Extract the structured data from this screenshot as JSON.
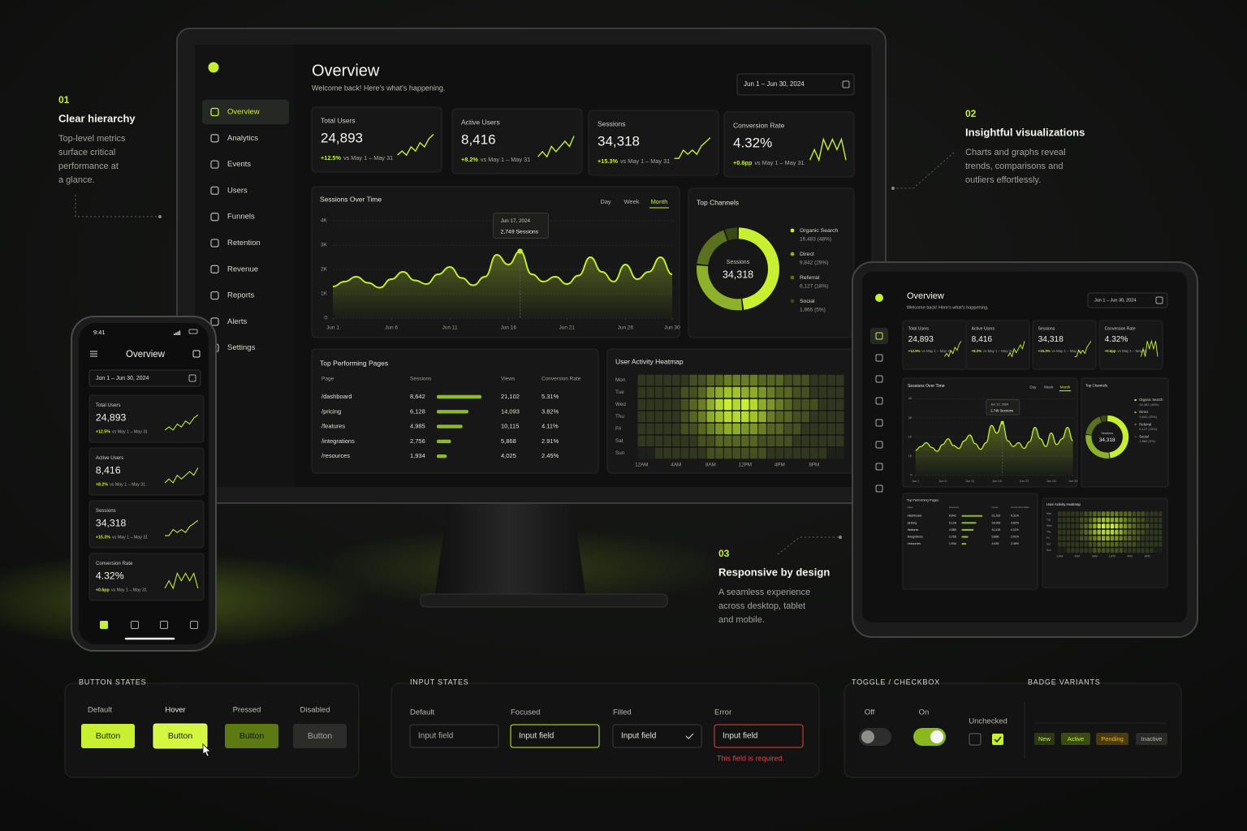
{
  "annotations": [
    {
      "number": "01",
      "title": "Clear hierarchy",
      "lines": [
        "Top-level metrics",
        "surface critical",
        "performance at",
        "a glance."
      ]
    },
    {
      "number": "02",
      "title": "Insightful visualizations",
      "lines": [
        "Charts and graphs reveal",
        "trends, comparisons and",
        "outliers effortlessly."
      ]
    },
    {
      "number": "03",
      "title": "Responsive by design",
      "lines": [
        "A seamless experience",
        "across desktop, tablet",
        "and mobile."
      ]
    }
  ],
  "dashboard": {
    "title": "Overview",
    "subtitle": "Welcome back! Here's what's happening.",
    "date_range": "Jun 1 – Jun 30, 2024",
    "accent": "#c8f031",
    "nav": [
      "Overview",
      "Analytics",
      "Events",
      "Users",
      "Funnels",
      "Retention",
      "Revenue",
      "Reports",
      "Alerts",
      "Settings"
    ],
    "kpis": [
      {
        "label": "Total Users",
        "value": "24,893",
        "change": "+12.5%",
        "period": "vs May 1 – May 31",
        "trend": [
          3,
          4,
          3,
          5,
          4,
          6,
          5,
          7,
          8
        ]
      },
      {
        "label": "Active Users",
        "value": "8,416",
        "change": "+8.2%",
        "period": "vs May 1 – May 31",
        "trend": [
          3,
          4,
          3,
          5,
          4,
          5,
          6,
          5,
          7
        ]
      },
      {
        "label": "Sessions",
        "value": "34,318",
        "change": "+15.3%",
        "period": "vs May 1 – May 31",
        "trend": [
          3,
          3,
          5,
          4,
          5,
          4,
          6,
          7,
          8
        ]
      },
      {
        "label": "Conversion Rate",
        "value": "4.32%",
        "change": "+0.6pp",
        "period": "vs May 1 – May 31",
        "trend": [
          4,
          5,
          4,
          6,
          5,
          6,
          5,
          6,
          4
        ]
      }
    ],
    "sessions_chart": {
      "title": "Sessions Over Time",
      "tabs": [
        "Day",
        "Week",
        "Month"
      ],
      "x": [
        1,
        2,
        3,
        4,
        5,
        6,
        7,
        8,
        9,
        10,
        11,
        12,
        13,
        14,
        15,
        16,
        17,
        18,
        19,
        20,
        21,
        22,
        23,
        24,
        25,
        26,
        27,
        28,
        29,
        30
      ],
      "values": [
        1300,
        1500,
        1700,
        1450,
        1250,
        1600,
        1900,
        1550,
        1400,
        1800,
        2100,
        1650,
        1350,
        1700,
        2600,
        2200,
        2749,
        1800,
        1500,
        1700,
        1400,
        1750,
        2500,
        1900,
        1500,
        2200,
        1600,
        1900,
        2500,
        1800
      ],
      "xlim": [
        1,
        30
      ],
      "ylim": [
        0,
        4000
      ],
      "yticks": [
        0,
        {
          "value": 1000,
          "label": "1K"
        },
        {
          "value": 2000,
          "label": "2K"
        },
        {
          "value": 3000,
          "label": "3K"
        },
        {
          "value": 4000,
          "label": "4K"
        }
      ],
      "xticks": [
        {
          "value": 1,
          "label": "Jun 1"
        },
        {
          "value": 6,
          "label": "Jun 6"
        },
        {
          "value": 11,
          "label": "Jun 11"
        },
        {
          "value": 16,
          "label": "Jun 16"
        },
        {
          "value": 21,
          "label": "Jun 21"
        },
        {
          "value": 26,
          "label": "Jun 26"
        },
        {
          "value": 30,
          "label": "Jun 30"
        }
      ],
      "tooltip": {
        "date": "Jun 17, 2024",
        "x": 17,
        "value": 2749,
        "label": "2,749 Sessions"
      }
    },
    "channels": {
      "title": "Top Channels",
      "items": [
        {
          "name": "Organic Search",
          "value": 16483,
          "value_label": "16,483 (48%)",
          "color": "#c8f031"
        },
        {
          "name": "Direct",
          "value": 9842,
          "value_label": "9,842 (29%)",
          "color": "#8db12a"
        },
        {
          "name": "Referral",
          "value": 6127,
          "value_label": "6,127 (18%)",
          "color": "#5a7220"
        },
        {
          "name": "Social",
          "value": 1866,
          "value_label": "1,866 (5%)",
          "color": "#3a4818"
        }
      ]
    },
    "pages": {
      "title": "Top Performing Pages",
      "columns": [
        "Page",
        "Sessions",
        "Views",
        "Conversion Rate"
      ],
      "rows": [
        {
          "page": "/dashboard",
          "sessions": 8642,
          "sessions_label": "8,642",
          "views": "21,102",
          "conversion": "5.31%"
        },
        {
          "page": "/pricing",
          "sessions": 6128,
          "sessions_label": "6,128",
          "views": "14,093",
          "conversion": "3.82%"
        },
        {
          "page": "/features",
          "sessions": 4985,
          "sessions_label": "4,985",
          "views": "10,115",
          "conversion": "4.11%"
        },
        {
          "page": "/integrations",
          "sessions": 2756,
          "sessions_label": "2,756",
          "views": "5,868",
          "conversion": "2.91%"
        },
        {
          "page": "/resources",
          "sessions": 1934,
          "sessions_label": "1,934",
          "views": "4,025",
          "conversion": "2.45%"
        }
      ]
    },
    "heatmap": {
      "title": "User Activity Heatmap",
      "days": [
        "Mon",
        "Tue",
        "Wed",
        "Thu",
        "Fri",
        "Sat",
        "Sun"
      ],
      "hours": [
        "12AM",
        "4AM",
        "8AM",
        "12PM",
        "4PM",
        "8PM"
      ],
      "values": [
        [
          1,
          1,
          1,
          1,
          1,
          1,
          2,
          2,
          3,
          3,
          4,
          4,
          4,
          4,
          3,
          3,
          3,
          2,
          2,
          2,
          1,
          1,
          1,
          1
        ],
        [
          1,
          1,
          1,
          1,
          1,
          2,
          2,
          3,
          5,
          6,
          7,
          7,
          6,
          6,
          5,
          4,
          3,
          3,
          2,
          2,
          1,
          1,
          1,
          1
        ],
        [
          1,
          1,
          1,
          1,
          1,
          2,
          3,
          4,
          6,
          8,
          9,
          8,
          9,
          8,
          6,
          5,
          4,
          3,
          2,
          2,
          2,
          1,
          1,
          1
        ],
        [
          1,
          1,
          1,
          1,
          1,
          2,
          3,
          4,
          6,
          7,
          8,
          8,
          8,
          7,
          6,
          4,
          3,
          3,
          2,
          2,
          1,
          1,
          1,
          1
        ],
        [
          1,
          1,
          1,
          1,
          1,
          2,
          2,
          3,
          4,
          5,
          6,
          6,
          5,
          5,
          4,
          3,
          3,
          2,
          2,
          1,
          1,
          1,
          1,
          1
        ],
        [
          1,
          1,
          1,
          1,
          1,
          1,
          1,
          2,
          2,
          3,
          3,
          3,
          3,
          3,
          2,
          2,
          2,
          2,
          1,
          1,
          1,
          1,
          1,
          1
        ],
        [
          0,
          0,
          1,
          1,
          1,
          1,
          1,
          1,
          2,
          2,
          2,
          2,
          2,
          2,
          2,
          1,
          1,
          1,
          1,
          1,
          1,
          1,
          0,
          0
        ]
      ]
    }
  },
  "phone": {
    "time": "9:41"
  },
  "components": {
    "buttons": {
      "title": "BUTTON STATES",
      "states": [
        "Default",
        "Hover",
        "Pressed",
        "Disabled"
      ],
      "label": "Button"
    },
    "inputs": {
      "title": "INPUT STATES",
      "states": [
        "Default",
        "Focused",
        "Filled",
        "Error"
      ],
      "placeholder": "Input field",
      "error": "This field is required."
    },
    "toggles": {
      "title": "TOGGLE / CHECKBOX",
      "off": "Off",
      "on": "On",
      "unchecked": "Unchecked"
    },
    "badges": {
      "title": "BADGE VARIANTS",
      "items": [
        "New",
        "Active",
        "Pending",
        "Inactive"
      ]
    }
  }
}
